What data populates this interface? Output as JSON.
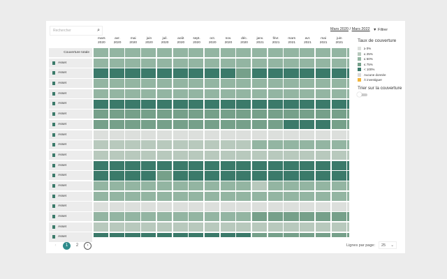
{
  "search": {
    "placeholder": "Rechercher",
    "icon": "search-icon"
  },
  "range": {
    "start": "Mars 2020",
    "sep": " / ",
    "end": "Mars 2022"
  },
  "filter_label": "Filtrer",
  "months": [
    [
      "mars",
      "2020"
    ],
    [
      "avr.",
      "2020"
    ],
    [
      "mai",
      "2020"
    ],
    [
      "juin",
      "2020"
    ],
    [
      "juil.",
      "2020"
    ],
    [
      "août",
      "2020"
    ],
    [
      "sept.",
      "2020"
    ],
    [
      "oct.",
      "2020"
    ],
    [
      "nov.",
      "2020"
    ],
    [
      "déc.",
      "2020"
    ],
    [
      "janv.",
      "2021"
    ],
    [
      "févr.",
      "2021"
    ],
    [
      "mars",
      "2021"
    ],
    [
      "avr.",
      "2021"
    ],
    [
      "mai",
      "2021"
    ],
    [
      "juin",
      "2021"
    ]
  ],
  "total_label": "Couverture totale",
  "asset_label": "Asset",
  "colors": [
    "#dcdfdc",
    "#b8c9bd",
    "#93b5a2",
    "#76a08a",
    "#3b7a6a"
  ],
  "levels": [
    [
      2,
      2,
      2,
      2,
      2,
      2,
      2,
      2,
      2,
      2,
      2,
      2,
      2,
      2,
      2,
      2,
      2
    ],
    [
      2,
      2,
      2,
      2,
      2,
      2,
      2,
      2,
      2,
      2,
      2,
      2,
      2,
      2,
      2,
      2,
      2
    ],
    [
      4,
      4,
      4,
      4,
      4,
      4,
      4,
      4,
      4,
      3,
      4,
      4,
      4,
      4,
      4,
      4,
      4
    ],
    [
      2,
      2,
      2,
      2,
      2,
      2,
      2,
      2,
      2,
      2,
      2,
      2,
      2,
      2,
      2,
      2,
      2
    ],
    [
      2,
      2,
      2,
      2,
      2,
      2,
      2,
      2,
      2,
      2,
      2,
      2,
      2,
      2,
      2,
      2,
      2
    ],
    [
      4,
      4,
      4,
      4,
      4,
      4,
      4,
      4,
      4,
      4,
      4,
      4,
      4,
      4,
      4,
      4,
      4
    ],
    [
      3,
      3,
      3,
      3,
      3,
      3,
      3,
      3,
      3,
      3,
      3,
      3,
      3,
      3,
      3,
      3,
      3
    ],
    [
      3,
      3,
      3,
      3,
      3,
      3,
      3,
      3,
      3,
      3,
      3,
      3,
      4,
      4,
      4,
      3,
      3
    ],
    [
      0,
      0,
      0,
      0,
      0,
      0,
      0,
      0,
      0,
      0,
      0,
      0,
      0,
      0,
      0,
      0,
      0
    ],
    [
      1,
      1,
      1,
      1,
      1,
      1,
      1,
      1,
      1,
      1,
      2,
      2,
      2,
      2,
      2,
      2,
      2
    ],
    [
      1,
      1,
      1,
      1,
      1,
      1,
      1,
      1,
      1,
      1,
      1,
      1,
      1,
      1,
      1,
      1,
      1
    ],
    [
      4,
      4,
      4,
      4,
      4,
      4,
      4,
      4,
      4,
      4,
      4,
      4,
      4,
      4,
      4,
      4,
      4
    ],
    [
      4,
      4,
      4,
      4,
      3,
      4,
      4,
      4,
      4,
      4,
      4,
      4,
      4,
      4,
      4,
      4,
      4
    ],
    [
      2,
      2,
      2,
      2,
      2,
      2,
      2,
      2,
      2,
      2,
      1,
      2,
      2,
      2,
      2,
      2,
      2
    ],
    [
      2,
      2,
      2,
      2,
      2,
      2,
      2,
      2,
      2,
      2,
      2,
      2,
      2,
      2,
      2,
      2,
      2
    ],
    [
      0,
      0,
      0,
      0,
      0,
      0,
      0,
      0,
      0,
      0,
      0,
      0,
      0,
      0,
      0,
      0,
      0
    ],
    [
      2,
      2,
      2,
      2,
      2,
      2,
      2,
      2,
      2,
      2,
      3,
      3,
      3,
      3,
      3,
      3,
      3
    ],
    [
      1,
      1,
      1,
      1,
      1,
      1,
      1,
      1,
      1,
      1,
      1,
      1,
      1,
      1,
      1,
      1,
      1
    ],
    [
      4,
      4,
      4,
      4,
      4,
      4,
      4,
      4,
      4,
      4,
      3,
      3,
      3,
      3,
      3,
      3,
      3
    ]
  ],
  "legend": {
    "title": "Taux de couverture",
    "items": [
      {
        "label": "≥ 0%",
        "color": "#dcdfdc"
      },
      {
        "label": "≤ 25%",
        "color": "#b8c9bd"
      },
      {
        "label": "≤ 50%",
        "color": "#93b5a2"
      },
      {
        "label": "≤ 75%",
        "color": "#76a08a"
      },
      {
        "label": "< 100%",
        "color": "#3b7a6a"
      },
      {
        "label": "Aucune donnée",
        "color": "#d8d8d8"
      },
      {
        "label": "À investiguer",
        "color": "#f2b53a"
      }
    ]
  },
  "sort_label": "Trier sur la couverture",
  "pagination": {
    "prev": "‹",
    "pages": [
      "1",
      "2"
    ],
    "next": "›"
  },
  "rows_per_page": {
    "label": "Lignes par page:",
    "value": "25"
  }
}
